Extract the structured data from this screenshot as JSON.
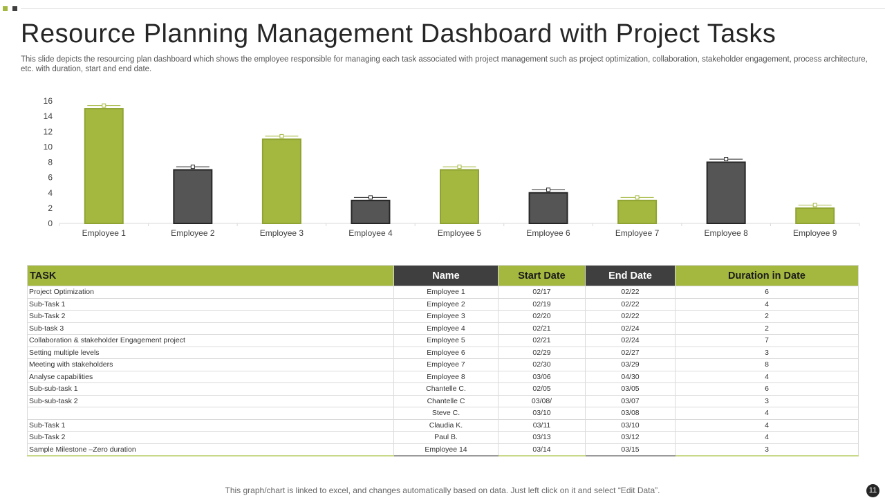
{
  "slide": {
    "title": "Resource Planning Management Dashboard with Project Tasks",
    "subtitle": "This slide depicts the resourcing plan dashboard which shows the employee responsible for managing each task associated with project management such as project optimization, collaboration, stakeholder engagement, process architecture, etc. with duration, start and end date.",
    "footer": "This graph/chart is linked to excel,  and changes automatically based on data. Just left click on it and select “Edit Data”.",
    "page_number": "11"
  },
  "colors": {
    "accent": "#a4b83f",
    "dark": "#3f3f3f"
  },
  "chart_data": {
    "type": "bar",
    "categories": [
      "Employee 1",
      "Employee 2",
      "Employee 3",
      "Employee 4",
      "Employee 5",
      "Employee 6",
      "Employee 7",
      "Employee 8",
      "Employee 9"
    ],
    "values": [
      15,
      7,
      11,
      3,
      7,
      4,
      3,
      8,
      2
    ],
    "bar_colors": [
      "#a4b83f",
      "#555555",
      "#a4b83f",
      "#555555",
      "#a4b83f",
      "#555555",
      "#a4b83f",
      "#555555",
      "#a4b83f"
    ],
    "marker_values": [
      15.4,
      7.4,
      11.4,
      3.4,
      7.4,
      4.4,
      3.4,
      8.4,
      2.4
    ],
    "yticks": [
      0,
      2,
      4,
      6,
      8,
      10,
      12,
      14,
      16
    ],
    "ylim": [
      0,
      16
    ],
    "grid": false,
    "xlabel": "",
    "ylabel": ""
  },
  "table": {
    "headers": [
      "TASK",
      "Name",
      "Start Date",
      "End Date",
      "Duration in Date"
    ],
    "rows": [
      [
        "Project Optimization",
        "Employee   1",
        "02/17",
        "02/22",
        "6"
      ],
      [
        "Sub-Task 1",
        "Employee   2",
        "02/19",
        "02/22",
        "4"
      ],
      [
        "Sub-Task 2",
        "Employee   3",
        "02/20",
        "02/22",
        "2"
      ],
      [
        "Sub-task 3",
        "Employee   4",
        "02/21",
        "02/24",
        "2"
      ],
      [
        "Collaboration & stakeholder Engagement  project",
        "Employee   5",
        "02/21",
        "02/24",
        "7"
      ],
      [
        "Setting multiple  levels",
        "Employee   6",
        "02/29",
        "02/27",
        "3"
      ],
      [
        "Meeting  with stakeholders",
        "Employee   7",
        "02/30",
        "03/29",
        "8"
      ],
      [
        "Analyse capabilities",
        "Employee   8",
        "03/06",
        "04/30",
        "4"
      ],
      [
        "Sub-sub-task 1",
        "Chantelle  C.",
        "02/05",
        "03/05",
        "6"
      ],
      [
        "Sub-sub-task 2",
        "Chantelle  C",
        "03/08/",
        "03/07",
        "3"
      ],
      [
        "",
        "Steve C.",
        "03/10",
        "03/08",
        "4"
      ],
      [
        "Sub-Task 1",
        "Claudia  K.",
        "03/11",
        "03/10",
        "4"
      ],
      [
        "Sub-Task 2",
        "Paul B.",
        "03/13",
        "03/12",
        "4"
      ],
      [
        "Sample Milestone –Zero duration",
        "Employee   14",
        "03/14",
        "03/15",
        "3"
      ]
    ]
  }
}
